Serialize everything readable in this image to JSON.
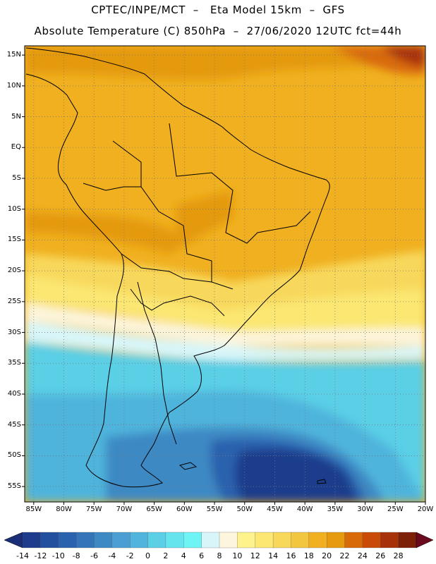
{
  "header": {
    "line1": "CPTEC/INPE/MCT  –   Eta Model 15km  –  GFS",
    "line2": "Absolute Temperature (C) 850hPa  –  27/06/2020 12UTC fct=44h"
  },
  "map": {
    "lat_ticks": [
      "15N",
      "10N",
      "5N",
      "EQ",
      "5S",
      "10S",
      "15S",
      "20S",
      "25S",
      "30S",
      "35S",
      "40S",
      "45S",
      "50S",
      "55S"
    ],
    "lon_ticks": [
      "85W",
      "80W",
      "75W",
      "70W",
      "65W",
      "60W",
      "55W",
      "50W",
      "45W",
      "40W",
      "35W",
      "30W",
      "25W",
      "20W"
    ],
    "lat_range_deg": [
      -57.5,
      16.5
    ],
    "lon_range_deg": [
      -86.5,
      -20
    ]
  },
  "colorbar": {
    "labels": [
      "-14",
      "-12",
      "-10",
      "-8",
      "-6",
      "-4",
      "-2",
      "0",
      "2",
      "4",
      "6",
      "8",
      "10",
      "12",
      "14",
      "16",
      "18",
      "20",
      "22",
      "24",
      "26",
      "28"
    ],
    "colors": [
      "#1e3c8c",
      "#23509e",
      "#2b62ae",
      "#3475b9",
      "#3d89c4",
      "#4a9ed1",
      "#50b4dc",
      "#5acfe6",
      "#66e4ee",
      "#6ff4f6",
      "#d8f6fa",
      "#fdf5dc",
      "#fdf28c",
      "#fbe772",
      "#f8d85b",
      "#f3c640",
      "#f0b020",
      "#e59a10",
      "#d96a08",
      "#c84c08",
      "#a83208",
      "#7d2008"
    ],
    "under_color": "#1a2e78",
    "over_color": "#6b0a1e"
  }
}
